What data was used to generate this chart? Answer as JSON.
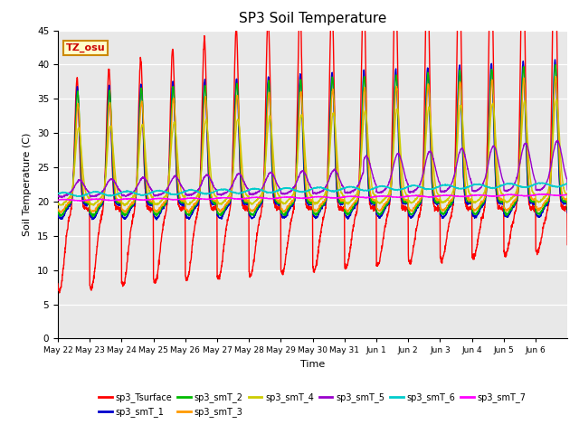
{
  "title": "SP3 Soil Temperature",
  "xlabel": "Time",
  "ylabel": "Soil Temperature (C)",
  "ylim": [
    0,
    45
  ],
  "annotation_text": "TZ_osu",
  "annotation_bgcolor": "#ffffcc",
  "annotation_edgecolor": "#cc8800",
  "annotation_textcolor": "#cc0000",
  "background_color": "#e8e8e8",
  "series_colors": {
    "sp3_Tsurface": "#ff0000",
    "sp3_smT_1": "#0000cc",
    "sp3_smT_2": "#00bb00",
    "sp3_smT_3": "#ff9900",
    "sp3_smT_4": "#cccc00",
    "sp3_smT_5": "#9900cc",
    "sp3_smT_6": "#00cccc",
    "sp3_smT_7": "#ff00ff"
  },
  "tick_labels": [
    "May 22",
    "May 23",
    "May 24",
    "May 25",
    "May 26",
    "May 27",
    "May 28",
    "May 29",
    "May 30",
    "May 31",
    "Jun 1",
    "Jun 2",
    "Jun 3",
    "Jun 4",
    "Jun 5",
    "Jun 6"
  ],
  "yticks": [
    0,
    5,
    10,
    15,
    20,
    25,
    30,
    35,
    40,
    45
  ],
  "n_days": 16
}
